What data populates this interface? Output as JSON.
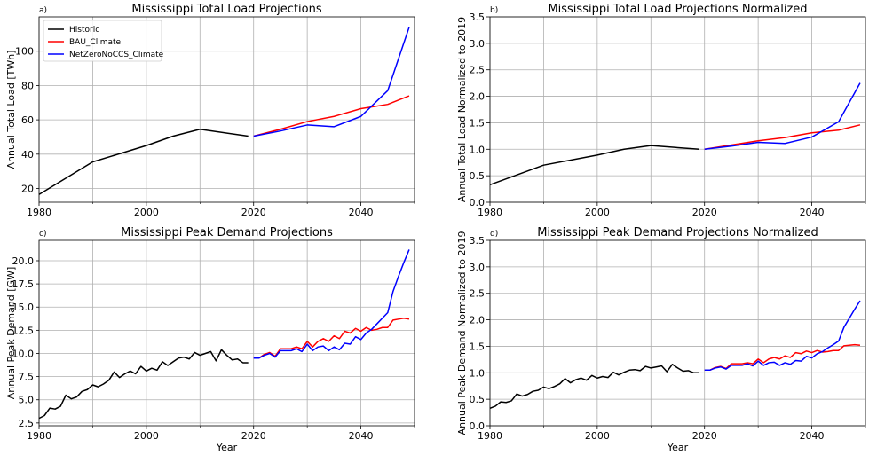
{
  "chart_data": [
    {
      "panel": "a)",
      "type": "line",
      "title": "Mississippi Total Load Projections",
      "xlabel": "",
      "ylabel": "Annual Total Load [TWh]",
      "xlim": [
        1980,
        2050
      ],
      "ylim": [
        12,
        120
      ],
      "xticks": [
        1980,
        2000,
        2020,
        2040
      ],
      "xminor": [
        1990,
        2010,
        2030,
        2050
      ],
      "yticks": [
        20,
        40,
        60,
        80,
        100
      ],
      "ytick_labels": [
        "20",
        "40",
        "60",
        "80",
        "100"
      ],
      "legend": {
        "position": "upper-left",
        "entries": [
          "Historic",
          "BAU_Climate",
          "NetZeroNoCCS_Climate"
        ]
      },
      "series": [
        {
          "name": "Historic",
          "color": "#000000",
          "x": [
            1980,
            1990,
            2000,
            2005,
            2010,
            2019
          ],
          "y": [
            16.5,
            35.5,
            45.0,
            50.5,
            54.5,
            50.5
          ]
        },
        {
          "name": "BAU_Climate",
          "color": "#ff0000",
          "x": [
            2020,
            2025,
            2030,
            2035,
            2040,
            2045,
            2049
          ],
          "y": [
            50.5,
            54.5,
            59.0,
            62.0,
            66.5,
            69.0,
            74.0
          ]
        },
        {
          "name": "NetZeroNoCCS_Climate",
          "color": "#0000ff",
          "x": [
            2020,
            2025,
            2030,
            2035,
            2040,
            2045,
            2049
          ],
          "y": [
            50.5,
            53.5,
            57.0,
            56.0,
            62.0,
            77.0,
            114.0
          ]
        }
      ]
    },
    {
      "panel": "b)",
      "type": "line",
      "title": "Mississippi Total Load Projections Normalized",
      "xlabel": "",
      "ylabel": "Annual Total Load Normalized to 2019",
      "xlim": [
        1980,
        2050
      ],
      "ylim": [
        0.0,
        3.5
      ],
      "xticks": [
        1980,
        2000,
        2020,
        2040
      ],
      "xminor": [
        1990,
        2010,
        2030,
        2050
      ],
      "yticks": [
        0.0,
        0.5,
        1.0,
        1.5,
        2.0,
        2.5,
        3.0,
        3.5
      ],
      "ytick_labels": [
        "0.0",
        "0.5",
        "1.0",
        "1.5",
        "2.0",
        "2.5",
        "3.0",
        "3.5"
      ],
      "series": [
        {
          "name": "Historic",
          "color": "#000000",
          "x": [
            1980,
            1990,
            2000,
            2005,
            2010,
            2019
          ],
          "y": [
            0.33,
            0.7,
            0.89,
            1.0,
            1.07,
            1.0
          ]
        },
        {
          "name": "BAU_Climate",
          "color": "#ff0000",
          "x": [
            2020,
            2025,
            2030,
            2035,
            2040,
            2045,
            2049
          ],
          "y": [
            1.0,
            1.08,
            1.16,
            1.22,
            1.31,
            1.36,
            1.46
          ]
        },
        {
          "name": "NetZeroNoCCS_Climate",
          "color": "#0000ff",
          "x": [
            2020,
            2025,
            2030,
            2035,
            2040,
            2045,
            2049
          ],
          "y": [
            1.0,
            1.06,
            1.13,
            1.11,
            1.23,
            1.52,
            2.25
          ]
        }
      ]
    },
    {
      "panel": "c)",
      "type": "line",
      "title": "Mississippi Peak Demand Projections",
      "xlabel": "Year",
      "ylabel": "Annual Peak Demand [GW]",
      "xlim": [
        1980,
        2050
      ],
      "ylim": [
        2.2,
        22.2
      ],
      "xticks": [
        1980,
        2000,
        2020,
        2040
      ],
      "xminor": [
        1990,
        2010,
        2030,
        2050
      ],
      "yticks": [
        2.5,
        5.0,
        7.5,
        10.0,
        12.5,
        15.0,
        17.5,
        20.0
      ],
      "ytick_labels": [
        "2.5",
        "5.0",
        "7.5",
        "10.0",
        "12.5",
        "15.0",
        "17.5",
        "20.0"
      ],
      "series": [
        {
          "name": "Historic",
          "color": "#000000",
          "x": [
            1980,
            1981,
            1982,
            1983,
            1984,
            1985,
            1986,
            1987,
            1988,
            1989,
            1990,
            1991,
            1992,
            1993,
            1994,
            1995,
            1996,
            1997,
            1998,
            1999,
            2000,
            2001,
            2002,
            2003,
            2004,
            2005,
            2006,
            2007,
            2008,
            2009,
            2010,
            2011,
            2012,
            2013,
            2014,
            2015,
            2016,
            2017,
            2018,
            2019
          ],
          "y": [
            3.0,
            3.3,
            4.1,
            4.0,
            4.3,
            5.5,
            5.1,
            5.3,
            5.9,
            6.1,
            6.6,
            6.4,
            6.7,
            7.1,
            8.0,
            7.4,
            7.8,
            8.1,
            7.8,
            8.6,
            8.1,
            8.4,
            8.2,
            9.1,
            8.7,
            9.1,
            9.5,
            9.6,
            9.4,
            10.1,
            9.8,
            10.0,
            10.2,
            9.2,
            10.4,
            9.8,
            9.3,
            9.4,
            9.0,
            9.0
          ]
        },
        {
          "name": "BAU_Climate",
          "color": "#ff0000",
          "x": [
            2020,
            2021,
            2022,
            2023,
            2024,
            2025,
            2026,
            2027,
            2028,
            2029,
            2030,
            2031,
            2032,
            2033,
            2034,
            2035,
            2036,
            2037,
            2038,
            2039,
            2040,
            2041,
            2042,
            2043,
            2044,
            2045,
            2046,
            2047,
            2048,
            2049
          ],
          "y": [
            9.5,
            9.5,
            9.9,
            10.1,
            9.7,
            10.5,
            10.5,
            10.5,
            10.7,
            10.5,
            11.3,
            10.7,
            11.3,
            11.6,
            11.3,
            11.9,
            11.6,
            12.4,
            12.2,
            12.7,
            12.4,
            12.8,
            12.5,
            12.6,
            12.8,
            12.8,
            13.6,
            13.7,
            13.8,
            13.7
          ]
        },
        {
          "name": "NetZeroNoCCS_Climate",
          "color": "#0000ff",
          "x": [
            2020,
            2021,
            2022,
            2023,
            2024,
            2025,
            2026,
            2027,
            2028,
            2029,
            2030,
            2031,
            2032,
            2033,
            2034,
            2035,
            2036,
            2037,
            2038,
            2039,
            2040,
            2041,
            2042,
            2043,
            2044,
            2045,
            2046,
            2047,
            2048,
            2049
          ],
          "y": [
            9.5,
            9.5,
            9.8,
            10.0,
            9.6,
            10.3,
            10.3,
            10.3,
            10.5,
            10.2,
            11.0,
            10.3,
            10.7,
            10.8,
            10.3,
            10.7,
            10.4,
            11.1,
            11.0,
            11.8,
            11.5,
            12.2,
            12.6,
            13.2,
            13.8,
            14.4,
            16.7,
            18.3,
            19.8,
            21.2
          ]
        }
      ]
    },
    {
      "panel": "d)",
      "type": "line",
      "title": "Mississippi Peak Demand Projections Normalized",
      "xlabel": "Year",
      "ylabel": "Annual Peak Demand Normalized to 2019",
      "xlim": [
        1980,
        2050
      ],
      "ylim": [
        0.0,
        3.5
      ],
      "xticks": [
        1980,
        2000,
        2020,
        2040
      ],
      "xminor": [
        1990,
        2010,
        2030,
        2050
      ],
      "yticks": [
        0.0,
        0.5,
        1.0,
        1.5,
        2.0,
        2.5,
        3.0,
        3.5
      ],
      "ytick_labels": [
        "0.0",
        "0.5",
        "1.0",
        "1.5",
        "2.0",
        "2.5",
        "3.0",
        "3.5"
      ],
      "series": [
        {
          "name": "Historic",
          "color": "#000000",
          "x": [
            1980,
            1981,
            1982,
            1983,
            1984,
            1985,
            1986,
            1987,
            1988,
            1989,
            1990,
            1991,
            1992,
            1993,
            1994,
            1995,
            1996,
            1997,
            1998,
            1999,
            2000,
            2001,
            2002,
            2003,
            2004,
            2005,
            2006,
            2007,
            2008,
            2009,
            2010,
            2011,
            2012,
            2013,
            2014,
            2015,
            2016,
            2017,
            2018,
            2019
          ],
          "y": [
            0.33,
            0.37,
            0.45,
            0.44,
            0.47,
            0.6,
            0.56,
            0.59,
            0.65,
            0.67,
            0.73,
            0.7,
            0.74,
            0.79,
            0.89,
            0.81,
            0.87,
            0.9,
            0.86,
            0.95,
            0.9,
            0.93,
            0.91,
            1.01,
            0.96,
            1.01,
            1.05,
            1.06,
            1.04,
            1.12,
            1.09,
            1.11,
            1.13,
            1.02,
            1.16,
            1.09,
            1.03,
            1.04,
            1.0,
            1.0
          ]
        },
        {
          "name": "BAU_Climate",
          "color": "#ff0000",
          "x": [
            2020,
            2021,
            2022,
            2023,
            2024,
            2025,
            2026,
            2027,
            2028,
            2029,
            2030,
            2031,
            2032,
            2033,
            2034,
            2035,
            2036,
            2037,
            2038,
            2039,
            2040,
            2041,
            2042,
            2043,
            2044,
            2045,
            2046,
            2047,
            2048,
            2049
          ],
          "y": [
            1.05,
            1.05,
            1.1,
            1.12,
            1.08,
            1.17,
            1.17,
            1.17,
            1.19,
            1.17,
            1.26,
            1.19,
            1.26,
            1.29,
            1.26,
            1.32,
            1.29,
            1.38,
            1.36,
            1.41,
            1.38,
            1.42,
            1.39,
            1.4,
            1.42,
            1.42,
            1.51,
            1.52,
            1.53,
            1.52
          ]
        },
        {
          "name": "NetZeroNoCCS_Climate",
          "color": "#0000ff",
          "x": [
            2020,
            2021,
            2022,
            2023,
            2024,
            2025,
            2026,
            2027,
            2028,
            2029,
            2030,
            2031,
            2032,
            2033,
            2034,
            2035,
            2036,
            2037,
            2038,
            2039,
            2040,
            2041,
            2042,
            2043,
            2044,
            2045,
            2046,
            2047,
            2048,
            2049
          ],
          "y": [
            1.05,
            1.05,
            1.09,
            1.11,
            1.07,
            1.14,
            1.14,
            1.14,
            1.17,
            1.13,
            1.22,
            1.14,
            1.19,
            1.2,
            1.14,
            1.19,
            1.16,
            1.23,
            1.22,
            1.31,
            1.28,
            1.36,
            1.4,
            1.47,
            1.53,
            1.6,
            1.86,
            2.03,
            2.2,
            2.36
          ]
        }
      ]
    }
  ]
}
